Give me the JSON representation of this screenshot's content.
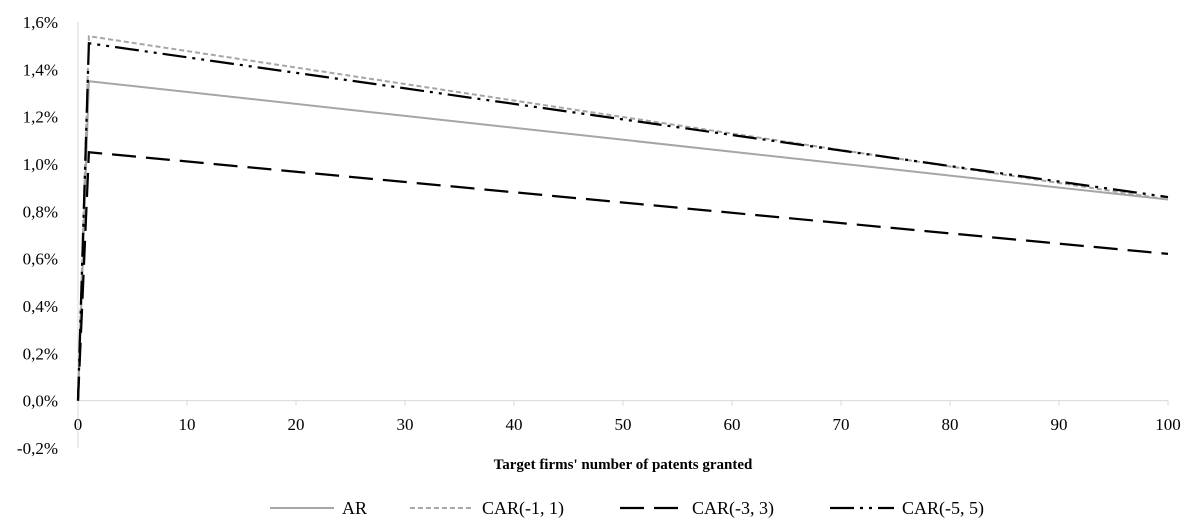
{
  "chart_data": {
    "type": "line",
    "title": "",
    "xlabel": "Target firms' number of patents granted",
    "ylabel": "",
    "xlim": [
      0,
      100
    ],
    "ylim": [
      -0.2,
      1.6
    ],
    "x_ticks": [
      0,
      10,
      20,
      30,
      40,
      50,
      60,
      70,
      80,
      90,
      100
    ],
    "y_ticks": [
      -0.2,
      0.0,
      0.2,
      0.4,
      0.6,
      0.8,
      1.0,
      1.2,
      1.4,
      1.6
    ],
    "x_tick_labels": [
      "0",
      "10",
      "20",
      "30",
      "40",
      "50",
      "60",
      "70",
      "80",
      "90",
      "100"
    ],
    "y_tick_labels": [
      "-0,2%",
      "0,0%",
      "0,2%",
      "0,4%",
      "0,6%",
      "0,8%",
      "1,0%",
      "1,2%",
      "1,4%",
      "1,6%"
    ],
    "y_unit": "%",
    "grid": false,
    "legend_position": "bottom",
    "series": [
      {
        "name": "AR",
        "color": "#a6a6a6",
        "dash": "solid",
        "x": [
          0,
          1,
          100
        ],
        "y": [
          0.0,
          1.35,
          0.85
        ]
      },
      {
        "name": "CAR(-1, 1)",
        "color": "#a6a6a6",
        "dash": "short-dash",
        "x": [
          0,
          1,
          100
        ],
        "y": [
          0.0,
          1.54,
          0.85
        ]
      },
      {
        "name": "CAR(-3, 3)",
        "color": "#000000",
        "dash": "long-dash",
        "x": [
          0,
          1,
          100
        ],
        "y": [
          0.0,
          1.05,
          0.62
        ]
      },
      {
        "name": "CAR(-5, 5)",
        "color": "#000000",
        "dash": "long-dash-dot-dot",
        "x": [
          0,
          1,
          100
        ],
        "y": [
          0.0,
          1.51,
          0.86
        ]
      }
    ]
  }
}
